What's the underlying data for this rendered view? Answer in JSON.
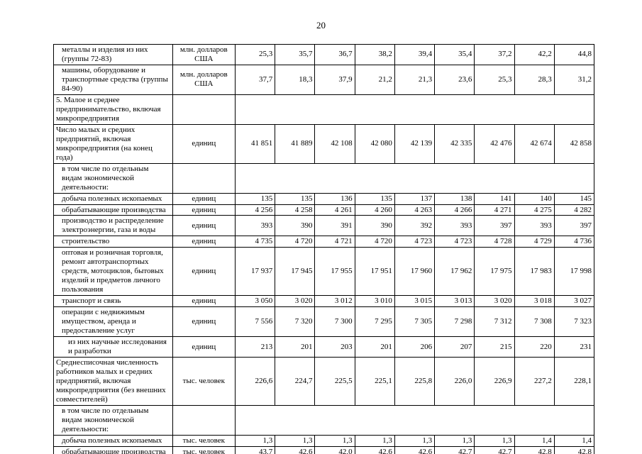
{
  "page": {
    "number": "20"
  },
  "table": {
    "rows": [
      {
        "label": "металлы и изделия из них (группы 72-83)",
        "unit": "млн. долларов США",
        "indent": 1,
        "values": [
          "25,3",
          "35,7",
          "36,7",
          "38,2",
          "39,4",
          "35,4",
          "37,2",
          "42,2",
          "44,8"
        ]
      },
      {
        "label": "машины, оборудование и транспортные средства (группы 84-90)",
        "unit": "млн. долларов США",
        "indent": 1,
        "values": [
          "37,7",
          "18,3",
          "37,9",
          "21,2",
          "21,3",
          "23,6",
          "25,3",
          "28,3",
          "31,2"
        ]
      },
      {
        "label": "5. Малое и среднее предпринимательство, включая микропредприятия",
        "unit": "",
        "indent": 0,
        "values": null
      },
      {
        "label": "Число малых и средних предприятий, включая микропредприятия (на конец года)",
        "unit": "единиц",
        "indent": 0,
        "values": [
          "41 851",
          "41 889",
          "42 108",
          "42 080",
          "42 139",
          "42 335",
          "42 476",
          "42 674",
          "42 858"
        ]
      },
      {
        "label": "в том числе по отдельным видам экономической деятельности:",
        "unit": "",
        "indent": 1,
        "values": null
      },
      {
        "label": "добыча полезных ископаемых",
        "unit": "единиц",
        "indent": 1,
        "values": [
          "135",
          "135",
          "136",
          "135",
          "137",
          "138",
          "141",
          "140",
          "145"
        ]
      },
      {
        "label": "обрабатывающие производства",
        "unit": "единиц",
        "indent": 1,
        "values": [
          "4 256",
          "4 258",
          "4 261",
          "4 260",
          "4 263",
          "4 266",
          "4 271",
          "4 275",
          "4 282"
        ]
      },
      {
        "label": "производство и распределение электроэнергии, газа и воды",
        "unit": "единиц",
        "indent": 1,
        "values": [
          "393",
          "390",
          "391",
          "390",
          "392",
          "393",
          "397",
          "393",
          "397"
        ]
      },
      {
        "label": "строительство",
        "unit": "единиц",
        "indent": 1,
        "values": [
          "4 735",
          "4 720",
          "4 721",
          "4 720",
          "4 723",
          "4 723",
          "4 728",
          "4 729",
          "4 736"
        ]
      },
      {
        "label": "оптовая и розничная торговля, ремонт автотранспортных средств, мотоциклов, бытовых изделий и предметов личного пользования",
        "unit": "единиц",
        "indent": 1,
        "values": [
          "17 937",
          "17 945",
          "17 955",
          "17 951",
          "17 960",
          "17 962",
          "17 975",
          "17 983",
          "17 998"
        ]
      },
      {
        "label": "транспорт и связь",
        "unit": "единиц",
        "indent": 1,
        "values": [
          "3 050",
          "3 020",
          "3 012",
          "3 010",
          "3 015",
          "3 013",
          "3 020",
          "3 018",
          "3 027"
        ]
      },
      {
        "label": "операции с недвижимым имуществом, аренда и предоставление услуг",
        "unit": "единиц",
        "indent": 1,
        "values": [
          "7 556",
          "7 320",
          "7 300",
          "7 295",
          "7 305",
          "7 298",
          "7 312",
          "7 308",
          "7 323"
        ]
      },
      {
        "label": "из них научные исследования и разработки",
        "unit": "единиц",
        "indent": 2,
        "values": [
          "213",
          "201",
          "203",
          "201",
          "206",
          "207",
          "215",
          "220",
          "231"
        ]
      },
      {
        "label": "Среднесписочная численность работников малых и средних предприятий, включая микропредприятия (без внешних совместителей)",
        "unit": "тыс. человек",
        "indent": 0,
        "values": [
          "226,6",
          "224,7",
          "225,5",
          "225,1",
          "225,8",
          "226,0",
          "226,9",
          "227,2",
          "228,1"
        ]
      },
      {
        "label": "в том числе по отдельным видам экономической деятельности:",
        "unit": "",
        "indent": 1,
        "values": null
      },
      {
        "label": "добыча полезных ископаемых",
        "unit": "тыс. человек",
        "indent": 1,
        "values": [
          "1,3",
          "1,3",
          "1,3",
          "1,3",
          "1,3",
          "1,3",
          "1,3",
          "1,4",
          "1,4"
        ]
      },
      {
        "label": "обрабатывающие производства",
        "unit": "тыс. человек",
        "indent": 1,
        "values": [
          "43,7",
          "42,6",
          "42,0",
          "42,6",
          "42,6",
          "42,7",
          "42,7",
          "42,8",
          "42,8"
        ]
      }
    ]
  }
}
